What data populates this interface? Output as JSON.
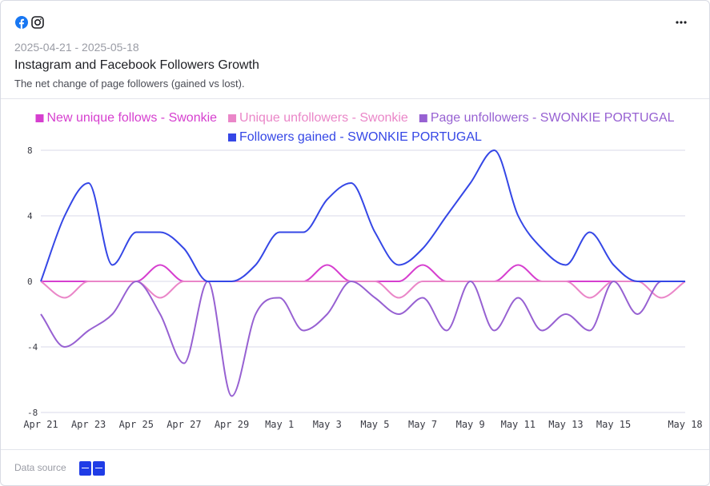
{
  "header": {
    "date_range": "2025-04-21 - 2025-05-18",
    "title": "Instagram and Facebook Followers Growth",
    "subtitle": "The net change of page followers (gained vs lost).",
    "icons": [
      "facebook-icon",
      "instagram-icon"
    ],
    "menu_icon": "more-horizontal-icon"
  },
  "footer": {
    "data_source_label": "Data source",
    "data_source_icon": "data-source-icon"
  },
  "colors": {
    "grid": "#d8d9ea",
    "facebook": "#1877f2"
  },
  "chart_data": {
    "type": "line",
    "x": [
      "Apr 21",
      "Apr 22",
      "Apr 23",
      "Apr 24",
      "Apr 25",
      "Apr 26",
      "Apr 27",
      "Apr 28",
      "Apr 29",
      "Apr 30",
      "May 1",
      "May 2",
      "May 3",
      "May 4",
      "May 5",
      "May 6",
      "May 7",
      "May 8",
      "May 9",
      "May 10",
      "May 11",
      "May 12",
      "May 13",
      "May 14",
      "May 15",
      "May 16",
      "May 17",
      "May 18"
    ],
    "x_tick_labels": [
      "Apr 21",
      "Apr 23",
      "Apr 25",
      "Apr 27",
      "Apr 29",
      "May 1",
      "May 3",
      "May 5",
      "May 7",
      "May 9",
      "May 11",
      "May 13",
      "May 15",
      "May 18"
    ],
    "yticks": [
      8,
      4,
      0,
      -4,
      -8
    ],
    "ylim": [
      -8,
      8
    ],
    "grid": true,
    "legend_position": "top",
    "series": [
      {
        "name": "New unique follows - Swonkie",
        "color": "#d63fcf",
        "values": [
          0,
          0,
          0,
          0,
          0,
          1,
          0,
          0,
          0,
          0,
          0,
          0,
          1,
          0,
          0,
          0,
          1,
          0,
          0,
          0,
          1,
          0,
          0,
          0,
          0,
          0,
          0,
          0
        ]
      },
      {
        "name": "Unique unfollowers - Swonkie",
        "color": "#ea86c8",
        "values": [
          0,
          -1,
          0,
          0,
          0,
          -1,
          0,
          0,
          0,
          0,
          0,
          0,
          0,
          0,
          0,
          -1,
          0,
          0,
          0,
          0,
          0,
          0,
          0,
          -1,
          0,
          0,
          -1,
          0
        ]
      },
      {
        "name": "Page unfollowers - SWONKIE PORTUGAL",
        "color": "#9761d2",
        "values": [
          -2,
          -4,
          -3,
          -2,
          0,
          -2,
          -5,
          0,
          -7,
          -2,
          -1,
          -3,
          -2,
          0,
          -1,
          -2,
          -1,
          -3,
          0,
          -3,
          -1,
          -3,
          -2,
          -3,
          0,
          -2,
          0,
          0
        ]
      },
      {
        "name": "Followers gained - SWONKIE PORTUGAL",
        "color": "#3547e6",
        "values": [
          0,
          4,
          6,
          1,
          3,
          3,
          2,
          0,
          0,
          1,
          3,
          3,
          5,
          6,
          3,
          1,
          2,
          4,
          6,
          8,
          4,
          2,
          1,
          3,
          1,
          0,
          0,
          0
        ]
      }
    ]
  }
}
